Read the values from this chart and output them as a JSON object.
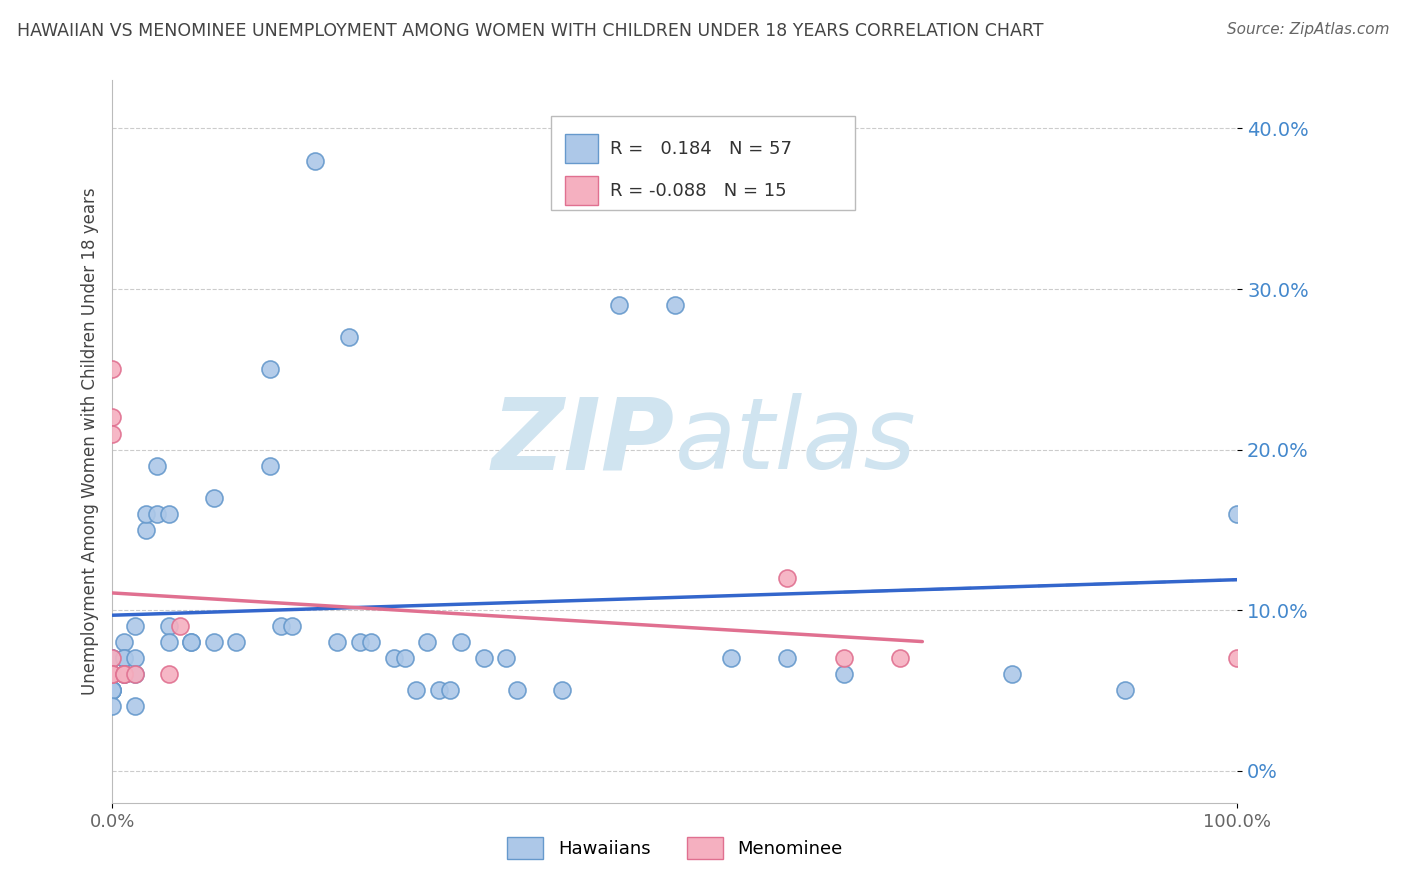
{
  "title": "HAWAIIAN VS MENOMINEE UNEMPLOYMENT AMONG WOMEN WITH CHILDREN UNDER 18 YEARS CORRELATION CHART",
  "source": "Source: ZipAtlas.com",
  "ylabel": "Unemployment Among Women with Children Under 18 years",
  "ytick_labels": [
    "0%",
    "10.0%",
    "20.0%",
    "30.0%",
    "40.0%"
  ],
  "ytick_values": [
    0.0,
    0.1,
    0.2,
    0.3,
    0.4
  ],
  "xmin": 0.0,
  "xmax": 1.0,
  "ymin": -0.02,
  "ymax": 0.43,
  "hawaiian_color": "#adc8e8",
  "menominee_color": "#f5b0c0",
  "hawaiian_edge": "#6699cc",
  "menominee_edge": "#e07090",
  "blue_line_color": "#3366cc",
  "pink_line_color": "#e07090",
  "dashed_line_color": "#7799cc",
  "R_hawaiian": 0.184,
  "N_hawaiian": 57,
  "R_menominee": -0.088,
  "N_menominee": 15,
  "watermark_zip": "ZIP",
  "watermark_atlas": "atlas",
  "watermark_color": "#d0e4f0",
  "background_color": "#ffffff",
  "grid_color": "#cccccc",
  "title_color": "#444444",
  "source_color": "#666666",
  "ytick_color": "#4488cc",
  "xtick_color": "#666666",
  "hawaiian_x": [
    0.0,
    0.0,
    0.0,
    0.0,
    0.0,
    0.0,
    0.0,
    0.0,
    0.01,
    0.01,
    0.01,
    0.01,
    0.01,
    0.02,
    0.02,
    0.02,
    0.02,
    0.03,
    0.03,
    0.04,
    0.04,
    0.05,
    0.05,
    0.05,
    0.07,
    0.07,
    0.09,
    0.09,
    0.11,
    0.14,
    0.14,
    0.15,
    0.16,
    0.18,
    0.2,
    0.21,
    0.22,
    0.23,
    0.25,
    0.26,
    0.27,
    0.28,
    0.29,
    0.3,
    0.31,
    0.33,
    0.35,
    0.36,
    0.4,
    0.45,
    0.5,
    0.55,
    0.6,
    0.65,
    0.8,
    0.9,
    1.0
  ],
  "hawaiian_y": [
    0.07,
    0.07,
    0.06,
    0.05,
    0.05,
    0.05,
    0.05,
    0.04,
    0.08,
    0.07,
    0.07,
    0.06,
    0.06,
    0.09,
    0.07,
    0.06,
    0.04,
    0.15,
    0.16,
    0.19,
    0.16,
    0.16,
    0.09,
    0.08,
    0.08,
    0.08,
    0.17,
    0.08,
    0.08,
    0.25,
    0.19,
    0.09,
    0.09,
    0.38,
    0.08,
    0.27,
    0.08,
    0.08,
    0.07,
    0.07,
    0.05,
    0.08,
    0.05,
    0.05,
    0.08,
    0.07,
    0.07,
    0.05,
    0.05,
    0.29,
    0.29,
    0.07,
    0.07,
    0.06,
    0.06,
    0.05,
    0.16
  ],
  "menominee_x": [
    0.0,
    0.0,
    0.0,
    0.0,
    0.0,
    0.0,
    0.01,
    0.01,
    0.02,
    0.05,
    0.06,
    0.6,
    0.65,
    0.7,
    1.0
  ],
  "menominee_y": [
    0.25,
    0.22,
    0.21,
    0.07,
    0.06,
    0.06,
    0.06,
    0.06,
    0.06,
    0.06,
    0.09,
    0.12,
    0.07,
    0.07,
    0.07
  ]
}
